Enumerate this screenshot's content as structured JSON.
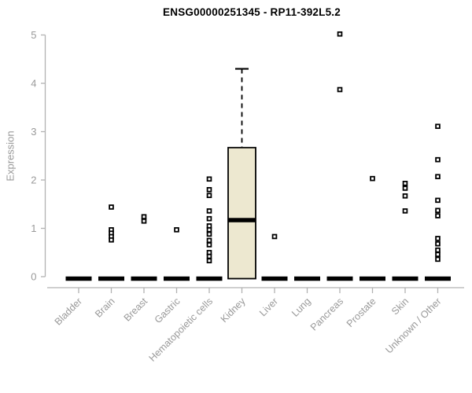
{
  "chart_data": {
    "type": "boxplot",
    "title": "ENSG00000251345 - RP11-392L5.2",
    "xlabel": "",
    "ylabel": "Expression",
    "ylim": [
      0,
      5
    ],
    "yticks": [
      0,
      1,
      2,
      3,
      4,
      5
    ],
    "grid": false,
    "legend": "none",
    "categories": [
      "Bladder",
      "Brain",
      "Breast",
      "Gastric",
      "Hematopoietic cells",
      "Kidney",
      "Liver",
      "Lung",
      "Pancreas",
      "Prostate",
      "Skin",
      "Unknown / Other"
    ],
    "boxes": [
      {
        "category": "Bladder",
        "q1": 0,
        "median": 0,
        "q3": 0,
        "whisker_low": 0,
        "whisker_high": 0,
        "outliers": []
      },
      {
        "category": "Brain",
        "q1": 0,
        "median": 0,
        "q3": 0,
        "whisker_low": 0,
        "whisker_high": 0,
        "outliers": [
          1.44,
          0.97,
          0.9,
          0.83,
          0.76
        ]
      },
      {
        "category": "Breast",
        "q1": 0,
        "median": 0,
        "q3": 0,
        "whisker_low": 0,
        "whisker_high": 0,
        "outliers": [
          1.24,
          1.15
        ]
      },
      {
        "category": "Gastric",
        "q1": 0,
        "median": 0,
        "q3": 0,
        "whisker_low": 0,
        "whisker_high": 0,
        "outliers": [
          0.97
        ]
      },
      {
        "category": "Hematopoietic cells",
        "q1": 0,
        "median": 0,
        "q3": 0,
        "whisker_low": 0,
        "whisker_high": 0,
        "outliers": [
          2.02,
          1.8,
          1.68,
          1.36,
          1.2,
          1.05,
          0.97,
          0.88,
          0.75,
          0.66,
          0.5,
          0.42,
          0.33
        ]
      },
      {
        "category": "Kidney",
        "q1": 0,
        "median": 1.17,
        "q3": 2.67,
        "whisker_low": 0,
        "whisker_high": 4.3,
        "outliers": []
      },
      {
        "category": "Liver",
        "q1": 0,
        "median": 0,
        "q3": 0,
        "whisker_low": 0,
        "whisker_high": 0,
        "outliers": [
          0.83
        ]
      },
      {
        "category": "Lung",
        "q1": 0,
        "median": 0,
        "q3": 0,
        "whisker_low": 0,
        "whisker_high": 0,
        "outliers": []
      },
      {
        "category": "Pancreas",
        "q1": 0,
        "median": 0,
        "q3": 0,
        "whisker_low": 0,
        "whisker_high": 0,
        "outliers": [
          5.02,
          3.87
        ]
      },
      {
        "category": "Prostate",
        "q1": 0,
        "median": 0,
        "q3": 0,
        "whisker_low": 0,
        "whisker_high": 0,
        "outliers": [
          2.03
        ]
      },
      {
        "category": "Skin",
        "q1": 0,
        "median": 0,
        "q3": 0,
        "whisker_low": 0,
        "whisker_high": 0,
        "outliers": [
          1.93,
          1.83,
          1.67,
          1.36
        ]
      },
      {
        "category": "Unknown / Other",
        "q1": 0,
        "median": 0,
        "q3": 0,
        "whisker_low": 0,
        "whisker_high": 0,
        "outliers": [
          3.11,
          2.42,
          2.07,
          1.58,
          1.37,
          1.26,
          0.79,
          0.68,
          0.55,
          0.46,
          0.36
        ]
      }
    ],
    "colors": {
      "box_fill": "#ede8d0",
      "box_border": "#000000",
      "median": "#000000",
      "point_fill": "#ffffff",
      "point_border": "#000000",
      "axis_line": "#b2b2b2",
      "tick_text": "#999999",
      "title": "#000000",
      "background": "#ffffff"
    }
  }
}
